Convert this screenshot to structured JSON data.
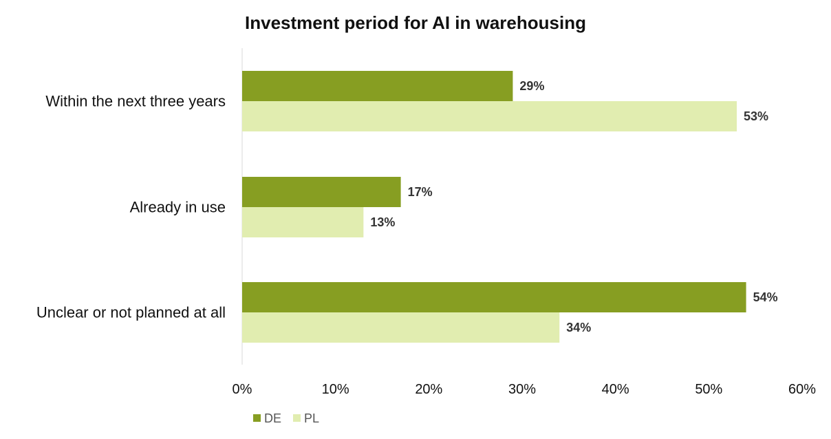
{
  "chart_data": {
    "type": "bar",
    "orientation": "horizontal",
    "title": "Investment period for AI in warehousing",
    "categories": [
      "Within the next three years",
      "Already in use",
      "Unclear or not planned at all"
    ],
    "series": [
      {
        "name": "DE",
        "values": [
          29,
          17,
          54
        ],
        "color": "#879e22",
        "labels": [
          "29%",
          "17%",
          "54%"
        ]
      },
      {
        "name": "PL",
        "values": [
          53,
          13,
          34
        ],
        "color": "#e1edb0",
        "labels": [
          "53%",
          "13%",
          "34%"
        ]
      }
    ],
    "xlim": [
      0,
      60
    ],
    "xticks": [
      "0%",
      "10%",
      "20%",
      "30%",
      "40%",
      "50%",
      "60%"
    ],
    "xtick_values": [
      0,
      10,
      20,
      30,
      40,
      50,
      60
    ],
    "grid": false,
    "legend_position": "bottom-left"
  }
}
